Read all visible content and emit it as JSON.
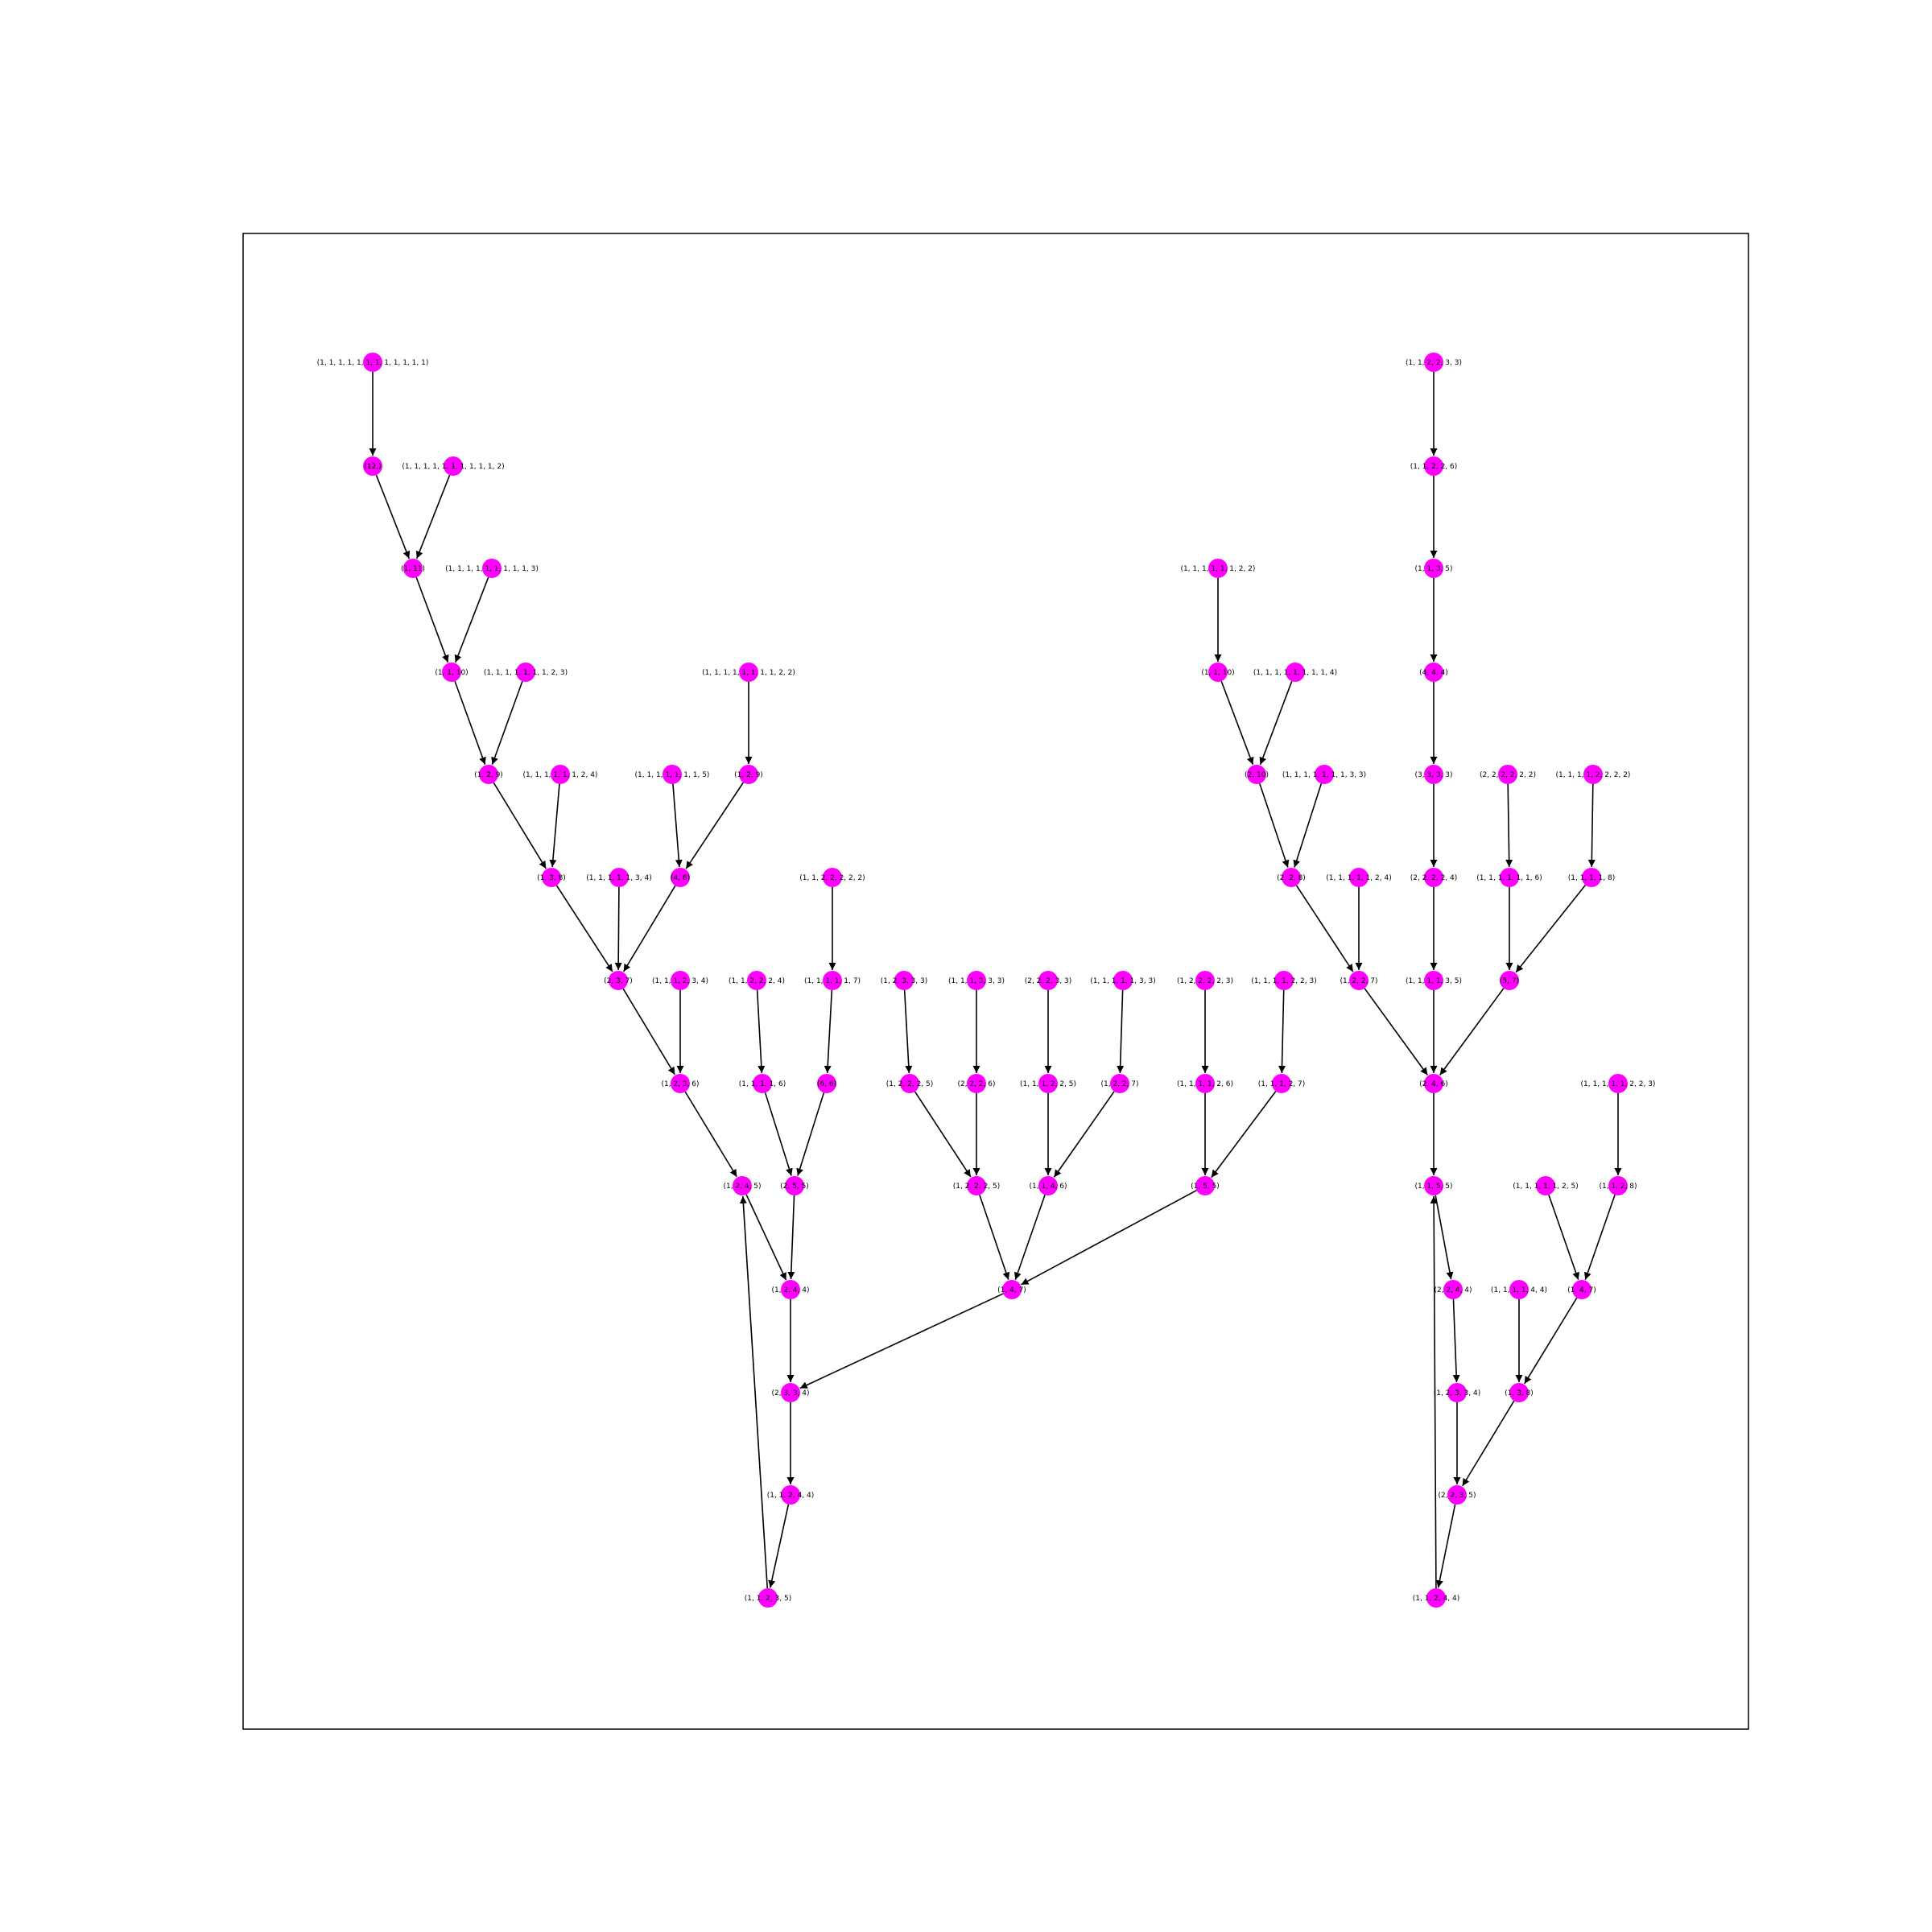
{
  "graph": {
    "node_color": "#ff00ff",
    "edge_color": "#000000",
    "directed": true,
    "nodes": [
      {
        "id": "n0",
        "label": "(1, 1, 1, 1, 1, 1, 1, 1, 1, 1, 1, 1)"
      },
      {
        "id": "n1",
        "label": "(12,)"
      },
      {
        "id": "n2",
        "label": "(1, 1, 1, 1, 1, 1, 1, 1, 1, 1, 2)"
      },
      {
        "id": "n3",
        "label": "(1, 11)"
      },
      {
        "id": "n4",
        "label": "(1, 1, 1, 1, 1, 1, 1, 1, 1, 3)"
      },
      {
        "id": "n5",
        "label": "(1, 1, 10)"
      },
      {
        "id": "n6",
        "label": "(1, 1, 1, 1, 1, 1, 1, 2, 3)"
      },
      {
        "id": "n7",
        "label": "(1, 2, 9)"
      },
      {
        "id": "n8",
        "label": "(1, 1, 1, 1, 1, 1, 1, 1, 2, 2)"
      },
      {
        "id": "n9",
        "label": "(1, 1, 1, 1, 1, 1, 2, 4)"
      },
      {
        "id": "n10",
        "label": "(1, 1, 1, 1, 1, 1, 1, 5)"
      },
      {
        "id": "n11",
        "label": "(1, 2, 9)"
      },
      {
        "id": "n12",
        "label": "(1, 3, 8)"
      },
      {
        "id": "n13",
        "label": "(1, 1, 1, 1, 1, 3, 4)"
      },
      {
        "id": "n14",
        "label": "(4, 8)"
      },
      {
        "id": "n15",
        "label": "(1, 1, 2, 2, 2, 2, 2)"
      },
      {
        "id": "n16",
        "label": "(2, 3, 7)"
      },
      {
        "id": "n17",
        "label": "(1, 1, 1, 2, 3, 4)"
      },
      {
        "id": "n18",
        "label": "(1, 1, 2, 2, 2, 4)"
      },
      {
        "id": "n19",
        "label": "(1, 1, 1, 1, 1, 7)"
      },
      {
        "id": "n20",
        "label": "(1, 2, 3, 3, 3)"
      },
      {
        "id": "n21",
        "label": "(1, 1, 1, 3, 3, 3)"
      },
      {
        "id": "n22",
        "label": "(2, 2, 2, 3, 3)"
      },
      {
        "id": "n23",
        "label": "(1, 1, 1, 1, 1, 3, 3)"
      },
      {
        "id": "n24",
        "label": "(1, 2, 2, 2, 2, 3)"
      },
      {
        "id": "n25",
        "label": "(1, 1, 1, 1, 2, 2, 3)"
      },
      {
        "id": "n26",
        "label": "(1, 2, 3, 6)"
      },
      {
        "id": "n27",
        "label": "(1, 1, 1, 1, 6)"
      },
      {
        "id": "n28",
        "label": "(6, 6)"
      },
      {
        "id": "n29",
        "label": "(1, 2, 2, 2, 5)"
      },
      {
        "id": "n30",
        "label": "(2, 2, 2, 6)"
      },
      {
        "id": "n31",
        "label": "(1, 1, 1, 2, 2, 5)"
      },
      {
        "id": "n32",
        "label": "(1, 2, 2, 7)"
      },
      {
        "id": "n33",
        "label": "(1, 1, 1, 1, 2, 6)"
      },
      {
        "id": "n34",
        "label": "(1, 1, 1, 2, 7)"
      },
      {
        "id": "n35",
        "label": "(1, 2, 4, 5)"
      },
      {
        "id": "n36",
        "label": "(2, 5, 5)"
      },
      {
        "id": "n37",
        "label": "(1, 2, 2, 2, 5)"
      },
      {
        "id": "n38",
        "label": "(1, 1, 4, 6)"
      },
      {
        "id": "n39",
        "label": "(1, 5, 5)"
      },
      {
        "id": "n40",
        "label": "(1, 2, 4, 4)"
      },
      {
        "id": "n41",
        "label": "(1, 4, 7)"
      },
      {
        "id": "n42",
        "label": "(2, 3, 3, 4)"
      },
      {
        "id": "n43",
        "label": "(1, 1, 2, 4, 4)"
      },
      {
        "id": "n44",
        "label": "(1, 1, 2, 3, 5)"
      },
      {
        "id": "n45",
        "label": "(1, 1, 1, 1, 1, 1, 2, 2)"
      },
      {
        "id": "n46",
        "label": "(1, 1, 10)"
      },
      {
        "id": "n47",
        "label": "(1, 1, 1, 1, 1, 1, 1, 1, 4)"
      },
      {
        "id": "n48",
        "label": "(2, 10)"
      },
      {
        "id": "n49",
        "label": "(1, 1, 1, 1, 1, 1, 1, 3, 3)"
      },
      {
        "id": "n50",
        "label": "(2, 2, 8)"
      },
      {
        "id": "n51",
        "label": "(1, 1, 1, 1, 1, 2, 4)"
      },
      {
        "id": "n52",
        "label": "(1, 2, 2, 7)"
      },
      {
        "id": "n53",
        "label": "(1, 1, 2, 2, 3, 3)"
      },
      {
        "id": "n54",
        "label": "(1, 1, 2, 2, 6)"
      },
      {
        "id": "n55",
        "label": "(1, 1, 3, 5)"
      },
      {
        "id": "n56",
        "label": "(4, 4, 4)"
      },
      {
        "id": "n57",
        "label": "(3, 3, 3, 3)"
      },
      {
        "id": "n58",
        "label": "(2, 2, 2, 2, 4)"
      },
      {
        "id": "n59",
        "label": "(1, 1, 1, 1, 3, 5)"
      },
      {
        "id": "n60",
        "label": "(2, 4, 6)"
      },
      {
        "id": "n61",
        "label": "(1, 1, 5, 5)"
      },
      {
        "id": "n62",
        "label": "(2, 2, 2, 2, 2, 2)"
      },
      {
        "id": "n63",
        "label": "(1, 1, 1, 1, 1, 1, 6)"
      },
      {
        "id": "n64",
        "label": "(5, 7)"
      },
      {
        "id": "n65",
        "label": "(1, 1, 1, 1, 2, 2, 2, 2)"
      },
      {
        "id": "n66",
        "label": "(1, 1, 1, 1, 8)"
      },
      {
        "id": "n67",
        "label": "(1, 1, 1, 1, 1, 2, 2, 3)"
      },
      {
        "id": "n68",
        "label": "(1, 1, 2, 8)"
      },
      {
        "id": "n69",
        "label": "(1, 1, 1, 1, 1, 2, 5)"
      },
      {
        "id": "n70",
        "label": "(1, 4, 7)"
      },
      {
        "id": "n71",
        "label": "(2, 2, 4, 4)"
      },
      {
        "id": "n72",
        "label": "(1, 1, 1, 1, 4, 4)"
      },
      {
        "id": "n73",
        "label": "(1, 2, 3, 3, 4)"
      },
      {
        "id": "n74",
        "label": "(1, 3, 8)"
      },
      {
        "id": "n75",
        "label": "(2, 2, 3, 5)"
      },
      {
        "id": "n76",
        "label": "(1, 1, 2, 4, 4)"
      }
    ],
    "edges": [
      [
        "n0",
        "n1"
      ],
      [
        "n1",
        "n3"
      ],
      [
        "n2",
        "n3"
      ],
      [
        "n3",
        "n5"
      ],
      [
        "n4",
        "n5"
      ],
      [
        "n5",
        "n7"
      ],
      [
        "n6",
        "n7"
      ],
      [
        "n7",
        "n12"
      ],
      [
        "n9",
        "n12"
      ],
      [
        "n8",
        "n11"
      ],
      [
        "n10",
        "n14"
      ],
      [
        "n11",
        "n14"
      ],
      [
        "n12",
        "n16"
      ],
      [
        "n13",
        "n16"
      ],
      [
        "n14",
        "n16"
      ],
      [
        "n15",
        "n19"
      ],
      [
        "n16",
        "n26"
      ],
      [
        "n17",
        "n26"
      ],
      [
        "n18",
        "n27"
      ],
      [
        "n19",
        "n28"
      ],
      [
        "n20",
        "n29"
      ],
      [
        "n21",
        "n30"
      ],
      [
        "n22",
        "n31"
      ],
      [
        "n23",
        "n32"
      ],
      [
        "n24",
        "n33"
      ],
      [
        "n25",
        "n34"
      ],
      [
        "n26",
        "n35"
      ],
      [
        "n27",
        "n36"
      ],
      [
        "n28",
        "n36"
      ],
      [
        "n29",
        "n37"
      ],
      [
        "n30",
        "n37"
      ],
      [
        "n31",
        "n38"
      ],
      [
        "n32",
        "n38"
      ],
      [
        "n33",
        "n39"
      ],
      [
        "n34",
        "n39"
      ],
      [
        "n35",
        "n40"
      ],
      [
        "n36",
        "n40"
      ],
      [
        "n37",
        "n41"
      ],
      [
        "n38",
        "n41"
      ],
      [
        "n39",
        "n41"
      ],
      [
        "n40",
        "n42"
      ],
      [
        "n41",
        "n42"
      ],
      [
        "n42",
        "n43"
      ],
      [
        "n43",
        "n44"
      ],
      [
        "n44",
        "n35"
      ],
      [
        "n45",
        "n46"
      ],
      [
        "n46",
        "n48"
      ],
      [
        "n47",
        "n48"
      ],
      [
        "n48",
        "n50"
      ],
      [
        "n49",
        "n50"
      ],
      [
        "n50",
        "n52"
      ],
      [
        "n51",
        "n52"
      ],
      [
        "n52",
        "n60"
      ],
      [
        "n53",
        "n54"
      ],
      [
        "n54",
        "n55"
      ],
      [
        "n55",
        "n56"
      ],
      [
        "n56",
        "n57"
      ],
      [
        "n57",
        "n58"
      ],
      [
        "n58",
        "n59"
      ],
      [
        "n59",
        "n60"
      ],
      [
        "n62",
        "n63"
      ],
      [
        "n63",
        "n64"
      ],
      [
        "n65",
        "n66"
      ],
      [
        "n66",
        "n64"
      ],
      [
        "n64",
        "n60"
      ],
      [
        "n60",
        "n61"
      ],
      [
        "n61",
        "n71"
      ],
      [
        "n71",
        "n73"
      ],
      [
        "n73",
        "n75"
      ],
      [
        "n67",
        "n68"
      ],
      [
        "n68",
        "n70"
      ],
      [
        "n69",
        "n70"
      ],
      [
        "n70",
        "n74"
      ],
      [
        "n72",
        "n74"
      ],
      [
        "n74",
        "n75"
      ],
      [
        "n75",
        "n76"
      ],
      [
        "n76",
        "n61"
      ]
    ]
  }
}
